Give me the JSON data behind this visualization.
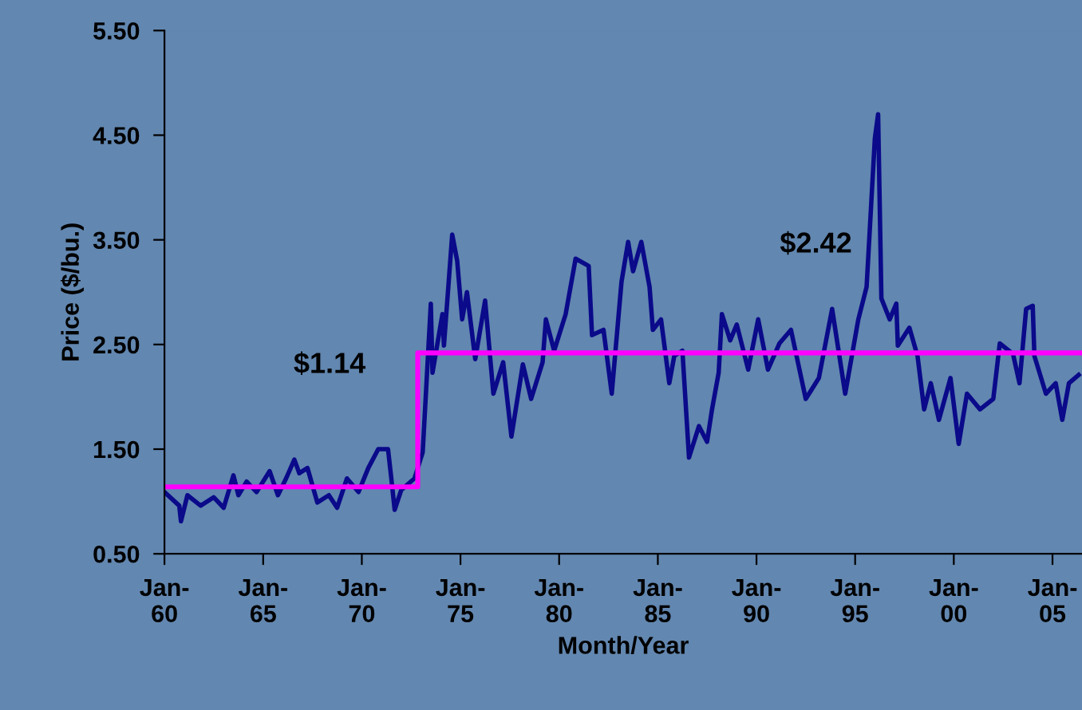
{
  "chart_data": {
    "type": "line",
    "xlabel": "Month/Year",
    "ylabel": "Price ($/bu.)",
    "xlim": [
      "1960-01",
      "2006-07"
    ],
    "ylim": [
      0.5,
      5.5
    ],
    "xticks": [
      {
        "value": "1960-01",
        "label": "Jan-\n60"
      },
      {
        "value": "1965-01",
        "label": "Jan-\n65"
      },
      {
        "value": "1970-01",
        "label": "Jan-\n70"
      },
      {
        "value": "1975-01",
        "label": "Jan-\n75"
      },
      {
        "value": "1980-01",
        "label": "Jan-\n80"
      },
      {
        "value": "1985-01",
        "label": "Jan-\n85"
      },
      {
        "value": "1990-01",
        "label": "Jan-\n90"
      },
      {
        "value": "1995-01",
        "label": "Jan-\n95"
      },
      {
        "value": "2000-01",
        "label": "Jan-\n00"
      },
      {
        "value": "2005-01",
        "label": "Jan-\n05"
      }
    ],
    "yticks": [
      {
        "value": 0.5,
        "label": "0.50"
      },
      {
        "value": 1.5,
        "label": "1.50"
      },
      {
        "value": 2.5,
        "label": "2.50"
      },
      {
        "value": 3.5,
        "label": "3.50"
      },
      {
        "value": 4.5,
        "label": "4.50"
      },
      {
        "value": 5.5,
        "label": "5.50"
      }
    ],
    "grid": false,
    "marker": "none",
    "line_style": "solid",
    "annotations": [
      "$1.14",
      "$2.42"
    ],
    "series": [
      {
        "color": "#0a0a8a",
        "x": [
          "1960-01",
          "1960-10",
          "1960-11",
          "1961-03",
          "1961-11",
          "1962-07",
          "1963-01",
          "1963-07",
          "1963-10",
          "1964-03",
          "1964-09",
          "1965-05",
          "1965-10",
          "1966-03",
          "1966-08",
          "1966-11",
          "1967-04",
          "1967-10",
          "1968-05",
          "1968-10",
          "1969-04",
          "1969-11",
          "1970-05",
          "1970-11",
          "1971-05",
          "1971-07",
          "1971-09",
          "1972-01",
          "1972-09",
          "1973-02",
          "1973-07",
          "1973-08",
          "1974-02",
          "1974-03",
          "1974-08",
          "1974-11",
          "1975-02",
          "1975-05",
          "1975-10",
          "1976-04",
          "1976-09",
          "1977-03",
          "1977-08",
          "1978-03",
          "1978-08",
          "1979-03",
          "1979-05",
          "1979-10",
          "1980-05",
          "1980-11",
          "1981-07",
          "1981-09",
          "1982-04",
          "1982-09",
          "1983-03",
          "1983-07",
          "1983-10",
          "1984-03",
          "1984-08",
          "1984-10",
          "1985-03",
          "1985-08",
          "1985-11",
          "1986-04",
          "1986-08",
          "1987-02",
          "1987-07",
          "1987-10",
          "1988-02",
          "1988-04",
          "1988-09",
          "1989-01",
          "1989-08",
          "1990-02",
          "1990-08",
          "1991-03",
          "1991-10",
          "1992-07",
          "1993-03",
          "1993-11",
          "1994-07",
          "1995-03",
          "1995-08",
          "1996-01",
          "1996-03",
          "1996-05",
          "1996-10",
          "1997-02",
          "1997-03",
          "1997-10",
          "1998-03",
          "1998-07",
          "1998-11",
          "1999-04",
          "1999-11",
          "2000-04",
          "2000-09",
          "2001-05",
          "2002-01",
          "2002-05",
          "2003-01",
          "2003-05",
          "2003-09",
          "2004-01",
          "2004-02",
          "2004-09",
          "2005-03",
          "2005-07",
          "2005-11",
          "2006-05"
        ],
        "values": [
          1.09,
          0.96,
          0.81,
          1.06,
          0.96,
          1.04,
          0.94,
          1.25,
          1.06,
          1.19,
          1.09,
          1.29,
          1.06,
          1.22,
          1.4,
          1.27,
          1.32,
          0.99,
          1.06,
          0.94,
          1.22,
          1.09,
          1.32,
          1.5,
          1.5,
          1.22,
          0.92,
          1.11,
          1.22,
          1.47,
          2.89,
          2.23,
          2.79,
          2.49,
          3.55,
          3.3,
          2.74,
          3.0,
          2.36,
          2.92,
          2.03,
          2.33,
          1.62,
          2.31,
          1.98,
          2.33,
          2.74,
          2.44,
          2.79,
          3.32,
          3.25,
          2.59,
          2.64,
          2.03,
          3.1,
          3.48,
          3.2,
          3.48,
          3.05,
          2.64,
          2.74,
          2.13,
          2.39,
          2.44,
          1.42,
          1.72,
          1.57,
          1.88,
          2.23,
          2.79,
          2.54,
          2.69,
          2.26,
          2.74,
          2.26,
          2.51,
          2.64,
          1.98,
          2.18,
          2.84,
          2.03,
          2.74,
          3.05,
          4.47,
          4.7,
          2.94,
          2.74,
          2.89,
          2.49,
          2.66,
          2.39,
          1.88,
          2.13,
          1.78,
          2.18,
          1.55,
          2.03,
          1.88,
          1.98,
          2.51,
          2.41,
          2.13,
          2.84,
          2.87,
          2.39,
          2.03,
          2.13,
          1.78,
          2.13,
          2.21
        ]
      },
      {
        "type": "step",
        "color": "#ff00ff",
        "x": [
          "1960-01",
          "1972-11",
          "2006-07"
        ],
        "values": [
          1.14,
          2.42,
          2.42
        ]
      }
    ]
  }
}
